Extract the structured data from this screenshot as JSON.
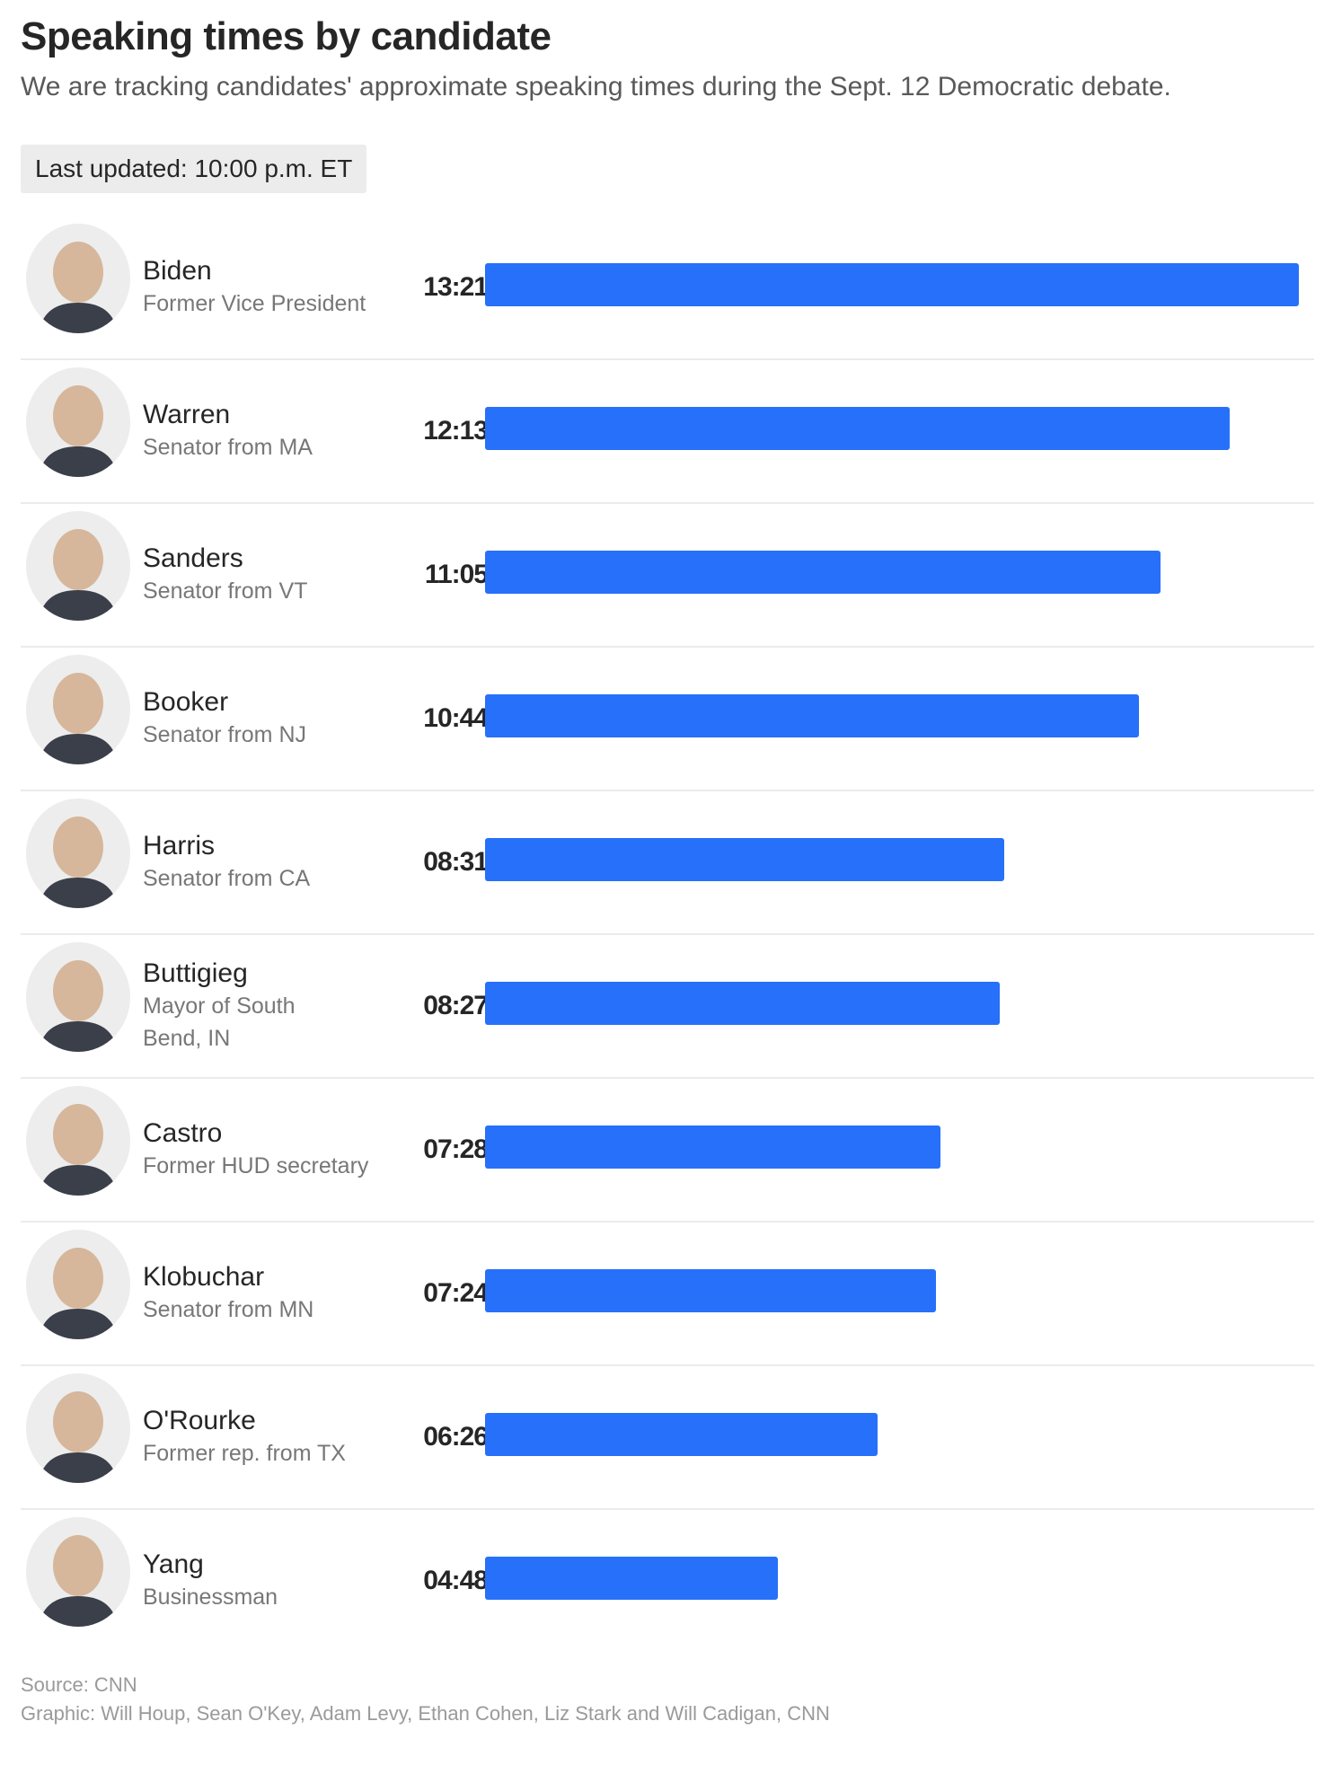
{
  "title": "Speaking times by candidate",
  "subtitle": "We are tracking candidates' approximate speaking times during the Sept. 12 Democratic debate.",
  "last_updated": "Last updated: 10:00 p.m. ET",
  "source": "Source: CNN",
  "credit": "Graphic: Will Houp, Sean O'Key, Adam Levy, Ethan Cohen, Liz Stark and Will Cadigan, CNN",
  "colors": {
    "bar": "#2770fa"
  },
  "chart_data": {
    "type": "bar",
    "orientation": "horizontal",
    "value_unit": "seconds",
    "categories": [
      "Biden",
      "Warren",
      "Sanders",
      "Booker",
      "Harris",
      "Buttigieg",
      "Castro",
      "Klobuchar",
      "O'Rourke",
      "Yang"
    ],
    "roles": [
      "Former Vice President",
      "Senator from MA",
      "Senator from VT",
      "Senator from NJ",
      "Senator from CA",
      "Mayor of South Bend, IN",
      "Former HUD secretary",
      "Senator from MN",
      "Former rep. from TX",
      "Businessman"
    ],
    "labels": [
      "13:21",
      "12:13",
      "11:05",
      "10:44",
      "08:31",
      "08:27",
      "07:28",
      "07:24",
      "06:26",
      "04:48"
    ],
    "values": [
      801,
      733,
      665,
      644,
      511,
      507,
      448,
      444,
      386,
      288
    ],
    "xlim": [
      0,
      801
    ],
    "grid": false,
    "legend": "none"
  }
}
